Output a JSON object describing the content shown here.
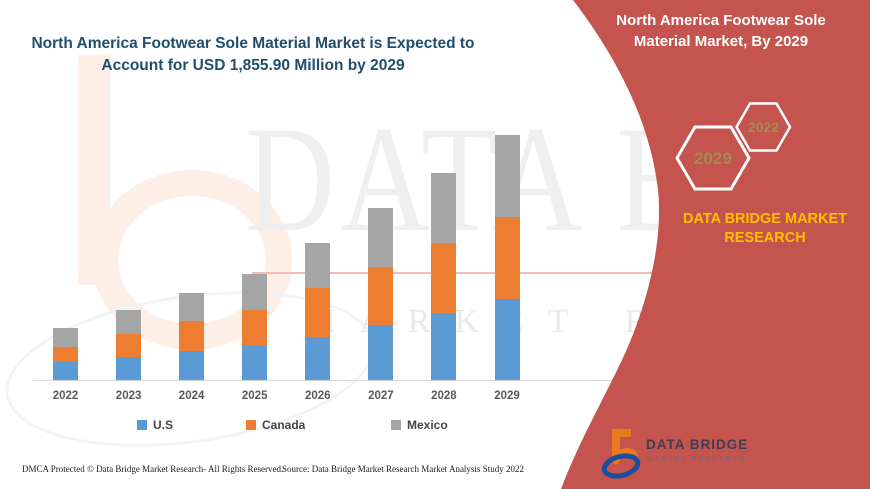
{
  "header": {
    "left_title": "North America Footwear Sole Material Market is Expected to Account for USD 1,855.90 Million by 2029",
    "left_title_color": "#214e6e"
  },
  "banner": {
    "color": "#c5534e",
    "title": "North America Footwear Sole Material Market, By 2029",
    "hexagon_large_year": "2029",
    "hexagon_small_year": "2022",
    "hex_year_color": "#a38c52",
    "brand_text": "DATA BRIDGE MARKET RESEARCH",
    "brand_color": "#ffc000"
  },
  "chart_data": {
    "type": "bar",
    "stacked": true,
    "title": "North America Footwear Sole Material Market is Expected to Account for USD 1,855.90 Million by 2029",
    "unit": "USD Million",
    "categories": [
      "2022",
      "2023",
      "2024",
      "2025",
      "2026",
      "2027",
      "2028",
      "2029"
    ],
    "series": [
      {
        "name": "U.S",
        "color": "#5b9bd5",
        "values": [
          139,
          174,
          220,
          258,
          326,
          417,
          508,
          614
        ]
      },
      {
        "name": "Canada",
        "color": "#ed7d31",
        "values": [
          114,
          174,
          227,
          273,
          371,
          439,
          530,
          621
        ]
      },
      {
        "name": "Mexico",
        "color": "#a5a5a5",
        "values": [
          139,
          182,
          212,
          273,
          341,
          447,
          530,
          620.9
        ]
      }
    ],
    "xlabel": "",
    "ylabel": "",
    "ylim": [
      0,
      2000
    ],
    "y_axis_visible": false,
    "gridlines": false,
    "legend_position": "bottom"
  },
  "watermark": {
    "line1": "DATA BRIDGE",
    "line2": "MARKET RESEARCH"
  },
  "logo": {
    "name": "DATA BRIDGE",
    "sub": "MARKET RESEARCH"
  },
  "footer": {
    "left": "DMCA Protected © Data Bridge Market Research- All Rights Reserved.",
    "right": "Source: Data Bridge Market Research Market Analysis Study 2022"
  }
}
